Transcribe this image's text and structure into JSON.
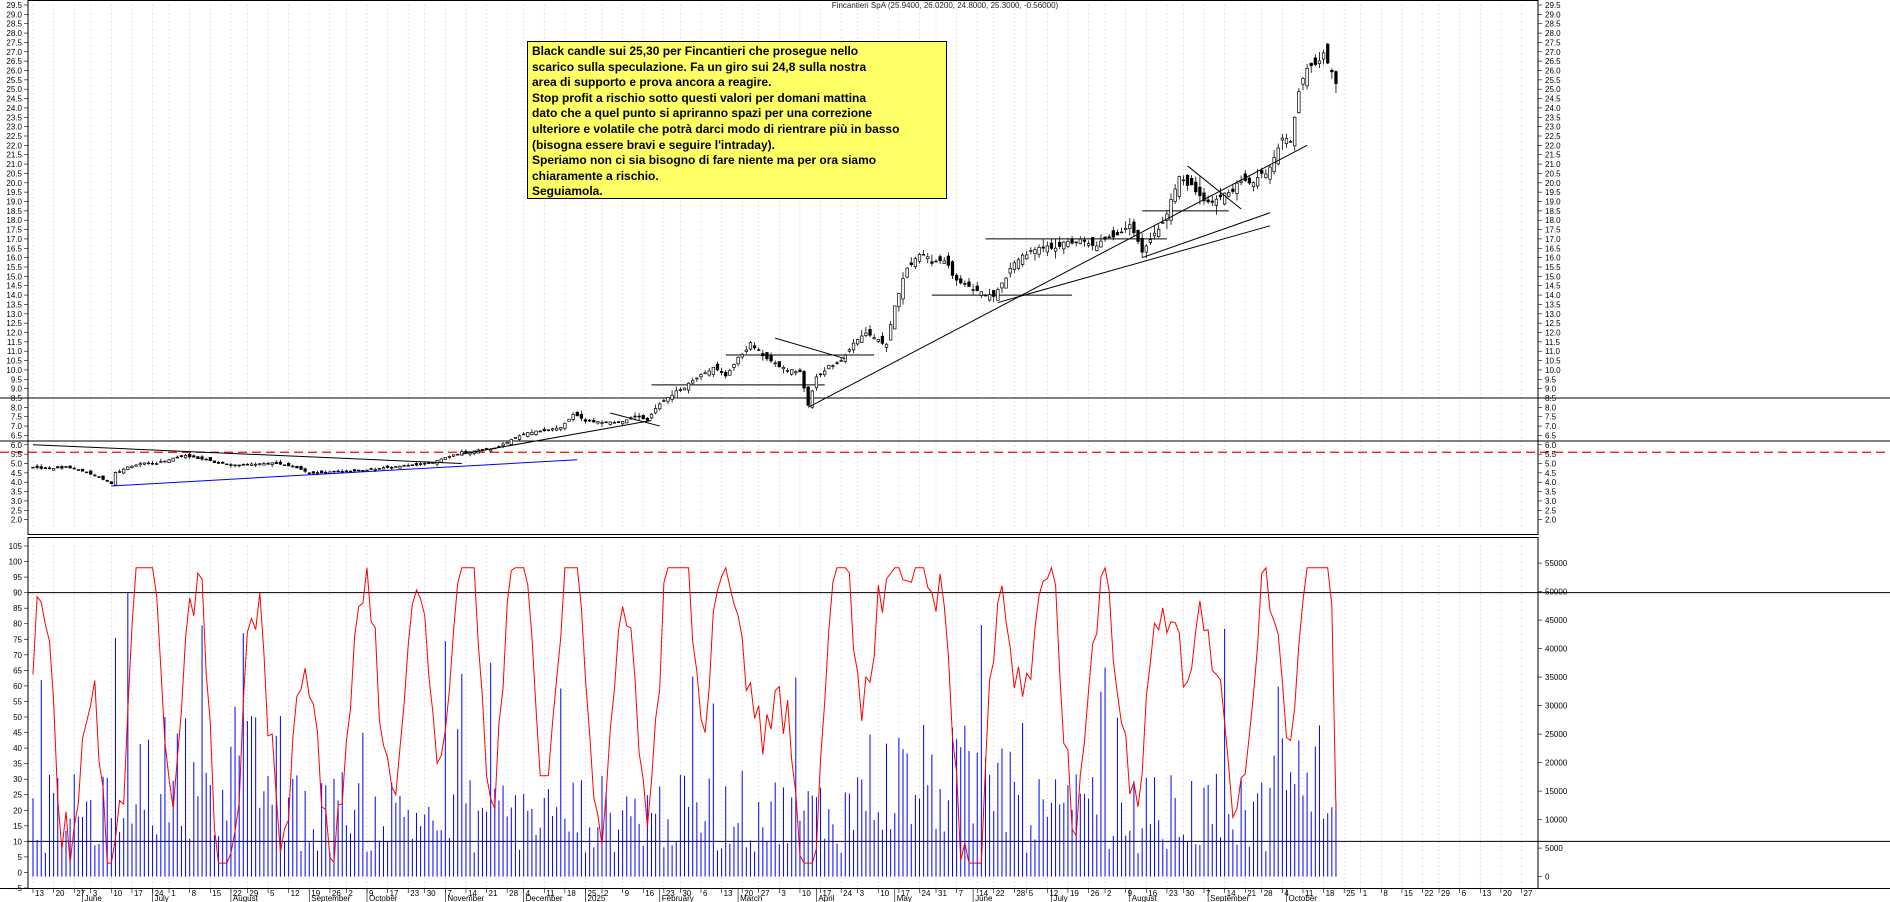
{
  "title": "Fincantieri SpA (25.9400, 26.0200, 24.8000, 25.3000, -0.56000)",
  "annotation": {
    "lines": [
      "Black candle sui 25,30 per Fincantieri che prosegue nello",
      "scarico sulla speculazione. Fa un giro sui 24,8 sulla nostra",
      "area di supporto e prova ancora a reagire.",
      "Stop profit a rischio sotto questi valori per domani mattina",
      "dato che a quel punto si apriranno spazi per una correzione",
      "ulteriore e volatile che potrà darci modo di rientrare più in basso",
      "(bisogna essere bravi e seguire l'intraday).",
      "Speriamo non ci sia bisogno di fare niente ma per ora siamo",
      "chiaramente a rischio.",
      "Seguiamola."
    ]
  },
  "colors": {
    "candle": "#000000",
    "oscillator": "#ff0000",
    "volume": "#0000ff",
    "support_dashed": "#ff0000",
    "trendline_blue": "#0000ff",
    "grid": "#aaaaaa"
  },
  "chart_data": [
    {
      "type": "candlestick",
      "ylim": [
        1.5,
        29.5
      ],
      "ytick_labels": [
        "2.0",
        "2.5",
        "3.0",
        "3.5",
        "4.0",
        "4.5",
        "5.0",
        "5.5",
        "6.0",
        "6.5",
        "7.0",
        "7.5",
        "8.0",
        "8.5",
        "9.0",
        "9.5",
        "10.0",
        "10.5",
        "11.0",
        "11.5",
        "12.0",
        "12.5",
        "13.0",
        "13.5",
        "14.0",
        "14.5",
        "15.0",
        "15.5",
        "16.0",
        "16.5",
        "17.0",
        "17.5",
        "18.0",
        "18.5",
        "19.0",
        "19.5",
        "20.0",
        "20.5",
        "21.0",
        "21.5",
        "22.0",
        "22.5",
        "23.0",
        "23.5",
        "24.0",
        "24.5",
        "25.0",
        "25.5",
        "26.0",
        "26.5",
        "27.0",
        "27.5",
        "28.0",
        "28.5",
        "29.0",
        "29.5"
      ],
      "last_candle": {
        "open": 25.94,
        "high": 26.02,
        "low": 24.8,
        "close": 25.3,
        "change": -0.56
      },
      "close_path": [
        [
          0,
          4.8
        ],
        [
          4,
          4.7
        ],
        [
          8,
          4.8
        ],
        [
          12,
          4.6
        ],
        [
          16,
          4.3
        ],
        [
          19,
          3.9
        ],
        [
          20,
          4.5
        ],
        [
          23,
          4.8
        ],
        [
          26,
          5.0
        ],
        [
          30,
          5.0
        ],
        [
          34,
          5.3
        ],
        [
          37,
          5.4
        ],
        [
          42,
          5.2
        ],
        [
          45,
          5.0
        ],
        [
          50,
          4.9
        ],
        [
          55,
          5.0
        ],
        [
          60,
          5.0
        ],
        [
          64,
          4.8
        ],
        [
          67,
          4.5
        ],
        [
          71,
          4.5
        ],
        [
          75,
          4.6
        ],
        [
          79,
          4.6
        ],
        [
          83,
          4.7
        ],
        [
          87,
          4.8
        ],
        [
          92,
          4.9
        ],
        [
          96,
          5.0
        ],
        [
          100,
          5.3
        ],
        [
          104,
          5.6
        ],
        [
          108,
          5.7
        ],
        [
          112,
          5.8
        ],
        [
          116,
          6.3
        ],
        [
          120,
          6.6
        ],
        [
          124,
          6.8
        ],
        [
          128,
          6.9
        ],
        [
          131,
          7.6
        ],
        [
          134,
          7.3
        ],
        [
          138,
          7.2
        ],
        [
          142,
          7.2
        ],
        [
          146,
          7.5
        ],
        [
          149,
          7.3
        ],
        [
          152,
          8.2
        ],
        [
          155,
          8.7
        ],
        [
          158,
          9.1
        ],
        [
          162,
          9.8
        ],
        [
          165,
          10.1
        ],
        [
          168,
          9.7
        ],
        [
          171,
          10.6
        ],
        [
          174,
          11.4
        ],
        [
          177,
          10.8
        ],
        [
          180,
          10.3
        ],
        [
          183,
          10.0
        ],
        [
          186,
          9.9
        ],
        [
          188,
          8.1
        ],
        [
          190,
          9.6
        ],
        [
          193,
          10.2
        ],
        [
          196,
          10.5
        ],
        [
          199,
          11.4
        ],
        [
          202,
          12.0
        ],
        [
          205,
          11.6
        ],
        [
          207,
          11.3
        ],
        [
          209,
          13.4
        ],
        [
          212,
          15.5
        ],
        [
          215,
          16.2
        ],
        [
          218,
          15.8
        ],
        [
          221,
          15.9
        ],
        [
          224,
          14.7
        ],
        [
          227,
          14.4
        ],
        [
          230,
          14.1
        ],
        [
          233,
          13.9
        ],
        [
          236,
          15.0
        ],
        [
          239,
          16.0
        ],
        [
          242,
          16.3
        ],
        [
          245,
          16.5
        ],
        [
          248,
          16.6
        ],
        [
          251,
          16.8
        ],
        [
          254,
          16.9
        ],
        [
          257,
          16.6
        ],
        [
          260,
          16.9
        ],
        [
          263,
          17.3
        ],
        [
          266,
          17.8
        ],
        [
          269,
          16.4
        ],
        [
          272,
          17.2
        ],
        [
          275,
          18.4
        ],
        [
          278,
          20.3
        ],
        [
          281,
          19.8
        ],
        [
          284,
          19.0
        ],
        [
          287,
          19.1
        ],
        [
          290,
          19.5
        ],
        [
          293,
          20.0
        ],
        [
          296,
          20.1
        ],
        [
          299,
          20.5
        ],
        [
          301,
          21.2
        ],
        [
          303,
          22.4
        ],
        [
          305,
          22.2
        ],
        [
          307,
          24.8
        ],
        [
          309,
          26.2
        ],
        [
          311,
          26.5
        ],
        [
          313,
          26.8
        ],
        [
          315,
          26.0
        ],
        [
          316,
          25.3
        ]
      ],
      "horizontal_levels": [
        {
          "value": 8.5,
          "style": "solid"
        },
        {
          "value": 6.2,
          "style": "solid"
        },
        {
          "value": 5.6,
          "style": "dashed",
          "color": "#ff0000"
        },
        {
          "value": 9.2,
          "from": 150,
          "to": 192
        },
        {
          "value": 10.8,
          "from": 168,
          "to": 204
        },
        {
          "value": 14.0,
          "from": 218,
          "to": 252
        },
        {
          "value": 17.0,
          "from": 231,
          "to": 275
        },
        {
          "value": 18.5,
          "from": 269,
          "to": 290
        }
      ],
      "trendlines": [
        {
          "from": [
            19,
            3.8
          ],
          "to": [
            132,
            5.2
          ],
          "color": "#0000ff"
        },
        {
          "from": [
            0,
            6.0
          ],
          "to": [
            104,
            5.0
          ]
        },
        {
          "from": [
            104,
            5.5
          ],
          "to": [
            150,
            7.3
          ]
        },
        {
          "from": [
            140,
            7.7
          ],
          "to": [
            152,
            7.0
          ]
        },
        {
          "from": [
            188,
            8.0
          ],
          "to": [
            309,
            22.0
          ]
        },
        {
          "from": [
            234,
            13.6
          ],
          "to": [
            300,
            17.7
          ]
        },
        {
          "from": [
            269,
            16.0
          ],
          "to": [
            300,
            18.4
          ]
        },
        {
          "from": [
            180,
            11.7
          ],
          "to": [
            197,
            10.6
          ]
        },
        {
          "from": [
            280,
            20.9
          ],
          "to": [
            293,
            18.6
          ]
        }
      ]
    },
    {
      "type": "bar+line",
      "left_ylim": [
        -5,
        105
      ],
      "left_tick_labels": [
        "105",
        "100",
        "95",
        "90",
        "85",
        "80",
        "75",
        "70",
        "65",
        "60",
        "55",
        "50",
        "45",
        "40",
        "35",
        "30",
        "25",
        "20",
        "15",
        "10",
        "5",
        "0",
        "-5"
      ],
      "right_ylim": [
        -2000,
        58000
      ],
      "right_tick_labels": [
        "55000",
        "50000",
        "45000",
        "40000",
        "35000",
        "30000",
        "25000",
        "20000",
        "15000",
        "10000",
        "5000",
        "0"
      ],
      "levels": [
        90,
        10
      ],
      "series": []
    }
  ],
  "x_axis": {
    "ticks": [
      {
        "i": 0,
        "label": "13"
      },
      {
        "i": 5,
        "label": "20"
      },
      {
        "i": 10,
        "label": "27"
      },
      {
        "i": 14,
        "label": "3"
      },
      {
        "i": 19,
        "label": "10"
      },
      {
        "i": 24,
        "label": "17"
      },
      {
        "i": 29,
        "label": "24"
      },
      {
        "i": 33,
        "label": "1"
      },
      {
        "i": 38,
        "label": "8"
      },
      {
        "i": 43,
        "label": "15"
      },
      {
        "i": 48,
        "label": "22"
      },
      {
        "i": 52,
        "label": "29"
      },
      {
        "i": 57,
        "label": "5"
      },
      {
        "i": 62,
        "label": "12"
      },
      {
        "i": 67,
        "label": "19"
      },
      {
        "i": 72,
        "label": "26"
      },
      {
        "i": 76,
        "label": "2"
      },
      {
        "i": 81,
        "label": "9"
      },
      {
        "i": 86,
        "label": "17"
      },
      {
        "i": 91,
        "label": "23"
      },
      {
        "i": 95,
        "label": "30"
      },
      {
        "i": 100,
        "label": "7"
      },
      {
        "i": 105,
        "label": "14"
      },
      {
        "i": 110,
        "label": "21"
      },
      {
        "i": 115,
        "label": "28"
      },
      {
        "i": 119,
        "label": "4"
      },
      {
        "i": 124,
        "label": "11"
      },
      {
        "i": 129,
        "label": "18"
      },
      {
        "i": 134,
        "label": "25"
      },
      {
        "i": 138,
        "label": "2"
      },
      {
        "i": 143,
        "label": "9"
      },
      {
        "i": 148,
        "label": "16"
      },
      {
        "i": 153,
        "label": "23"
      },
      {
        "i": 157,
        "label": "30"
      },
      {
        "i": 162,
        "label": "6"
      },
      {
        "i": 167,
        "label": "13"
      },
      {
        "i": 172,
        "label": "20"
      },
      {
        "i": 176,
        "label": "27"
      },
      {
        "i": 181,
        "label": "3"
      },
      {
        "i": 186,
        "label": "10"
      },
      {
        "i": 191,
        "label": "17"
      },
      {
        "i": 196,
        "label": "24"
      },
      {
        "i": 200,
        "label": "3"
      },
      {
        "i": 205,
        "label": "10"
      },
      {
        "i": 210,
        "label": "17"
      },
      {
        "i": 215,
        "label": "24"
      },
      {
        "i": 219,
        "label": "31"
      },
      {
        "i": 224,
        "label": "7"
      },
      {
        "i": 229,
        "label": "14"
      },
      {
        "i": 233,
        "label": "22"
      },
      {
        "i": 238,
        "label": "28"
      },
      {
        "i": 241,
        "label": "5"
      },
      {
        "i": 246,
        "label": "12"
      },
      {
        "i": 251,
        "label": "19"
      },
      {
        "i": 256,
        "label": "26"
      },
      {
        "i": 260,
        "label": "2"
      },
      {
        "i": 265,
        "label": "9"
      },
      {
        "i": 270,
        "label": "16"
      },
      {
        "i": 275,
        "label": "23"
      },
      {
        "i": 279,
        "label": "30"
      },
      {
        "i": 284,
        "label": "7"
      },
      {
        "i": 289,
        "label": "14"
      },
      {
        "i": 294,
        "label": "21"
      },
      {
        "i": 298,
        "label": "28"
      },
      {
        "i": 303,
        "label": "4"
      },
      {
        "i": 308,
        "label": "11"
      },
      {
        "i": 313,
        "label": "18"
      },
      {
        "i": 318,
        "label": "25"
      },
      {
        "i": 322,
        "label": "1"
      },
      {
        "i": 327,
        "label": "8"
      },
      {
        "i": 332,
        "label": "15"
      },
      {
        "i": 337,
        "label": "22"
      },
      {
        "i": 341,
        "label": "29"
      },
      {
        "i": 346,
        "label": "6"
      },
      {
        "i": 351,
        "label": "13"
      },
      {
        "i": 356,
        "label": "20"
      },
      {
        "i": 361,
        "label": "27"
      }
    ],
    "months": [
      {
        "i": 12,
        "label": "June"
      },
      {
        "i": 29,
        "label": "July"
      },
      {
        "i": 48,
        "label": "August"
      },
      {
        "i": 67,
        "label": "September"
      },
      {
        "i": 81,
        "label": "October"
      },
      {
        "i": 100,
        "label": "November"
      },
      {
        "i": 119,
        "label": "December"
      },
      {
        "i": 134,
        "label": "2025"
      },
      {
        "i": 152,
        "label": "February"
      },
      {
        "i": 171,
        "label": "March"
      },
      {
        "i": 190,
        "label": "April"
      },
      {
        "i": 209,
        "label": "May"
      },
      {
        "i": 228,
        "label": "June"
      },
      {
        "i": 247,
        "label": "July"
      },
      {
        "i": 266,
        "label": "August"
      },
      {
        "i": 285,
        "label": "September"
      },
      {
        "i": 304,
        "label": "October"
      }
    ]
  }
}
